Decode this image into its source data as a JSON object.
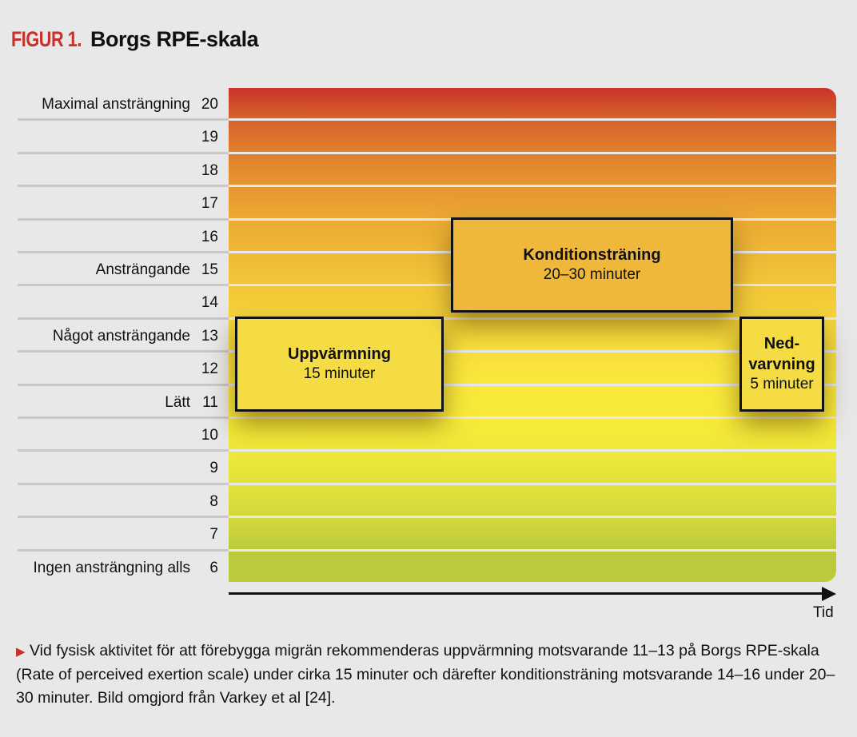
{
  "title": {
    "prefix": "FIGUR 1.",
    "name": "Borgs RPE-skala"
  },
  "chart_data": {
    "type": "table",
    "title": "Borgs RPE-skala",
    "xlabel": "Tid",
    "scale": [
      {
        "value": 20,
        "label": "Maximal ansträngning",
        "color": "#c9332a"
      },
      {
        "value": 19,
        "label": "",
        "color": "#d6622b"
      },
      {
        "value": 18,
        "label": "",
        "color": "#e07f2e"
      },
      {
        "value": 17,
        "label": "",
        "color": "#e69530"
      },
      {
        "value": 16,
        "label": "",
        "color": "#ecaa33"
      },
      {
        "value": 15,
        "label": "Ansträngande",
        "color": "#efb835"
      },
      {
        "value": 14,
        "label": "",
        "color": "#f2c639"
      },
      {
        "value": 13,
        "label": "Något ansträngande",
        "color": "#f5d53b"
      },
      {
        "value": 12,
        "label": "",
        "color": "#f8e03c"
      },
      {
        "value": 11,
        "label": "Lätt",
        "color": "#fae83b"
      },
      {
        "value": 10,
        "label": "",
        "color": "#f8ea38"
      },
      {
        "value": 9,
        "label": "",
        "color": "#efe93a"
      },
      {
        "value": 8,
        "label": "",
        "color": "#e2e23b"
      },
      {
        "value": 7,
        "label": "",
        "color": "#d3d83c"
      },
      {
        "value": 6,
        "label": "Ingen ansträngning alls",
        "color": "#bccb3b"
      }
    ],
    "phases": [
      {
        "name": "Uppvärmning",
        "duration": "15 minuter",
        "rpe": [
          11,
          13
        ]
      },
      {
        "name": "Konditionsträning",
        "duration": "20–30 minuter",
        "rpe": [
          14,
          16
        ]
      },
      {
        "name": "Ned-\nvarvning",
        "duration": "5 minuter",
        "rpe": [
          11,
          13
        ]
      }
    ]
  },
  "caption": "Vid fysisk aktivitet för att förebygga migrän rekommenderas uppvärmning motsvarande 11–13 på Borgs RPE-skala (Rate of perceived exertion scale) under cirka 15 minuter och därefter konditionsträning motsvarande 14–16 under 20–30 minuter.  Bild omgjord från Varkey et al [24]."
}
